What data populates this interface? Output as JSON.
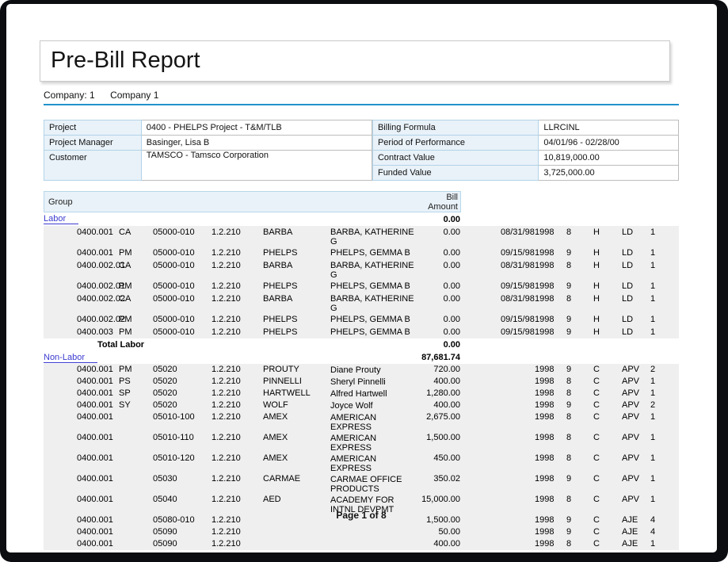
{
  "page": {
    "title": "Pre-Bill Report",
    "footer": "Page 1 of 8"
  },
  "company": {
    "label": "Company:",
    "number": "1",
    "name": "Company 1"
  },
  "colors": {
    "rule-blue": "#2191cb",
    "link-blue": "#3b3bd0",
    "header-bg": "#e9f2f9",
    "row-gray": "#efefef"
  },
  "info_left": [
    {
      "label": "Project",
      "value": "0400 - PHELPS Project - T&M/TLB"
    },
    {
      "label": "Project Manager",
      "value": "Basinger, Lisa B"
    },
    {
      "label": "Customer",
      "value": "TAMSCO - Tamsco Corporation"
    }
  ],
  "info_right": [
    {
      "label": "Billing Formula",
      "value": "LLRCINL"
    },
    {
      "label": "Period of Performance",
      "value": "04/01/96 - 02/28/00"
    },
    {
      "label": "Contract Value",
      "value": "10,819,000.00"
    },
    {
      "label": "Funded Value",
      "value": "3,725,000.00"
    }
  ],
  "report": {
    "header": {
      "group": "Group",
      "amount_line1": "Bill",
      "amount_line2": "Amount"
    },
    "labor": {
      "name": "Labor",
      "amount": "0.00",
      "total_label": "Total Labor",
      "total_amount": "0.00",
      "rows": [
        {
          "project": "0400.001",
          "code": "CA",
          "account": "05000-010",
          "org": "1.2.210",
          "vendor": "BARBA",
          "vendor_name": "BARBA, KATHERINE G",
          "amount": "0.00",
          "date": "08/31/98",
          "year": "1998",
          "period": "8",
          "type": "H",
          "source": "LD",
          "qty": "1"
        },
        {
          "project": "0400.001",
          "code": "PM",
          "account": "05000-010",
          "org": "1.2.210",
          "vendor": "PHELPS",
          "vendor_name": "PHELPS, GEMMA B",
          "amount": "0.00",
          "date": "09/15/98",
          "year": "1998",
          "period": "9",
          "type": "H",
          "source": "LD",
          "qty": "1"
        },
        {
          "project": "0400.002.01",
          "code": "CA",
          "account": "05000-010",
          "org": "1.2.210",
          "vendor": "BARBA",
          "vendor_name": "BARBA, KATHERINE G",
          "amount": "0.00",
          "date": "08/31/98",
          "year": "1998",
          "period": "8",
          "type": "H",
          "source": "LD",
          "qty": "1"
        },
        {
          "project": "0400.002.01",
          "code": "PM",
          "account": "05000-010",
          "org": "1.2.210",
          "vendor": "PHELPS",
          "vendor_name": "PHELPS, GEMMA B",
          "amount": "0.00",
          "date": "09/15/98",
          "year": "1998",
          "period": "9",
          "type": "H",
          "source": "LD",
          "qty": "1"
        },
        {
          "project": "0400.002.02",
          "code": "CA",
          "account": "05000-010",
          "org": "1.2.210",
          "vendor": "BARBA",
          "vendor_name": "BARBA, KATHERINE G",
          "amount": "0.00",
          "date": "08/31/98",
          "year": "1998",
          "period": "8",
          "type": "H",
          "source": "LD",
          "qty": "1"
        },
        {
          "project": "0400.002.02",
          "code": "PM",
          "account": "05000-010",
          "org": "1.2.210",
          "vendor": "PHELPS",
          "vendor_name": "PHELPS, GEMMA B",
          "amount": "0.00",
          "date": "09/15/98",
          "year": "1998",
          "period": "9",
          "type": "H",
          "source": "LD",
          "qty": "1"
        },
        {
          "project": "0400.003",
          "code": "PM",
          "account": "05000-010",
          "org": "1.2.210",
          "vendor": "PHELPS",
          "vendor_name": "PHELPS, GEMMA B",
          "amount": "0.00",
          "date": "09/15/98",
          "year": "1998",
          "period": "9",
          "type": "H",
          "source": "LD",
          "qty": "1"
        }
      ]
    },
    "nonlabor": {
      "name": "Non-Labor",
      "amount": "87,681.74",
      "rows": [
        {
          "project": "0400.001",
          "code": "PM",
          "account": "05020",
          "org": "1.2.210",
          "vendor": "PROUTY",
          "vendor_name": "Diane Prouty",
          "amount": "720.00",
          "date": "",
          "year": "1998",
          "period": "9",
          "type": "C",
          "source": "APV",
          "qty": "2"
        },
        {
          "project": "0400.001",
          "code": "PS",
          "account": "05020",
          "org": "1.2.210",
          "vendor": "PINNELLI",
          "vendor_name": "Sheryl Pinnelli",
          "amount": "400.00",
          "date": "",
          "year": "1998",
          "period": "8",
          "type": "C",
          "source": "APV",
          "qty": "1"
        },
        {
          "project": "0400.001",
          "code": "SP",
          "account": "05020",
          "org": "1.2.210",
          "vendor": "HARTWELL",
          "vendor_name": "Alfred Hartwell",
          "amount": "1,280.00",
          "date": "",
          "year": "1998",
          "period": "8",
          "type": "C",
          "source": "APV",
          "qty": "1"
        },
        {
          "project": "0400.001",
          "code": "SY",
          "account": "05020",
          "org": "1.2.210",
          "vendor": "WOLF",
          "vendor_name": "Joyce Wolf",
          "amount": "400.00",
          "date": "",
          "year": "1998",
          "period": "9",
          "type": "C",
          "source": "APV",
          "qty": "2"
        },
        {
          "project": "0400.001",
          "code": "",
          "account": "05010-100",
          "org": "1.2.210",
          "vendor": "AMEX",
          "vendor_name": "AMERICAN EXPRESS",
          "amount": "2,675.00",
          "date": "",
          "year": "1998",
          "period": "8",
          "type": "C",
          "source": "APV",
          "qty": "1"
        },
        {
          "project": "0400.001",
          "code": "",
          "account": "05010-110",
          "org": "1.2.210",
          "vendor": "AMEX",
          "vendor_name": "AMERICAN EXPRESS",
          "amount": "1,500.00",
          "date": "",
          "year": "1998",
          "period": "8",
          "type": "C",
          "source": "APV",
          "qty": "1"
        },
        {
          "project": "0400.001",
          "code": "",
          "account": "05010-120",
          "org": "1.2.210",
          "vendor": "AMEX",
          "vendor_name": "AMERICAN EXPRESS",
          "amount": "450.00",
          "date": "",
          "year": "1998",
          "period": "8",
          "type": "C",
          "source": "APV",
          "qty": "1"
        },
        {
          "project": "0400.001",
          "code": "",
          "account": "05030",
          "org": "1.2.210",
          "vendor": "CARMAE",
          "vendor_name": "CARMAE OFFICE PRODUCTS",
          "amount": "350.02",
          "date": "",
          "year": "1998",
          "period": "9",
          "type": "C",
          "source": "APV",
          "qty": "1"
        },
        {
          "project": "0400.001",
          "code": "",
          "account": "05040",
          "org": "1.2.210",
          "vendor": "AED",
          "vendor_name": "ACADEMY FOR INTNL DEVPMT",
          "amount": "15,000.00",
          "date": "",
          "year": "1998",
          "period": "8",
          "type": "C",
          "source": "APV",
          "qty": "1"
        },
        {
          "project": "0400.001",
          "code": "",
          "account": "05080-010",
          "org": "1.2.210",
          "vendor": "",
          "vendor_name": "",
          "amount": "1,500.00",
          "date": "",
          "year": "1998",
          "period": "9",
          "type": "C",
          "source": "AJE",
          "qty": "4"
        },
        {
          "project": "0400.001",
          "code": "",
          "account": "05090",
          "org": "1.2.210",
          "vendor": "",
          "vendor_name": "",
          "amount": "50.00",
          "date": "",
          "year": "1998",
          "period": "9",
          "type": "C",
          "source": "AJE",
          "qty": "4"
        },
        {
          "project": "0400.001",
          "code": "",
          "account": "05090",
          "org": "1.2.210",
          "vendor": "",
          "vendor_name": "",
          "amount": "400.00",
          "date": "",
          "year": "1998",
          "period": "8",
          "type": "C",
          "source": "AJE",
          "qty": "1"
        }
      ]
    }
  }
}
